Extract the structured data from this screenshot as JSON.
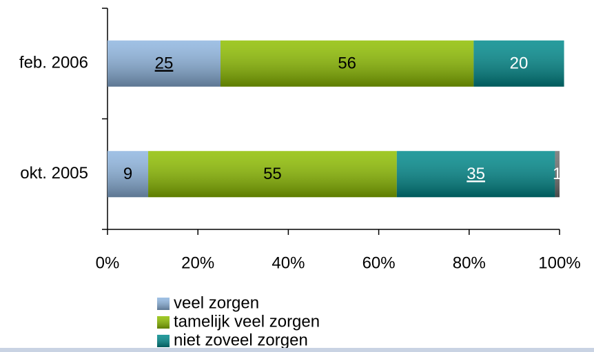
{
  "chart_data": {
    "type": "stacked-barh",
    "categories": [
      "feb. 2006",
      "okt. 2005"
    ],
    "series": [
      {
        "name": "veel zorgen",
        "color": "#8fb6e0",
        "values": [
          25,
          9
        ]
      },
      {
        "name": "tamelijk veel zorgen",
        "color": "#8fbf00",
        "values": [
          56,
          55
        ]
      },
      {
        "name": "niet zoveel zorgen",
        "color": "#008a8c",
        "values": [
          20,
          35
        ]
      },
      {
        "color": "#707070",
        "values": [
          null,
          1
        ]
      }
    ],
    "xlim": [
      0,
      100
    ],
    "xticks": [
      {
        "value": 0,
        "label": "0%"
      },
      {
        "value": 20,
        "label": "20%"
      },
      {
        "value": 40,
        "label": "40%"
      },
      {
        "value": 60,
        "label": "60%"
      },
      {
        "value": 80,
        "label": "80%"
      },
      {
        "value": 100,
        "label": "100%"
      }
    ]
  }
}
